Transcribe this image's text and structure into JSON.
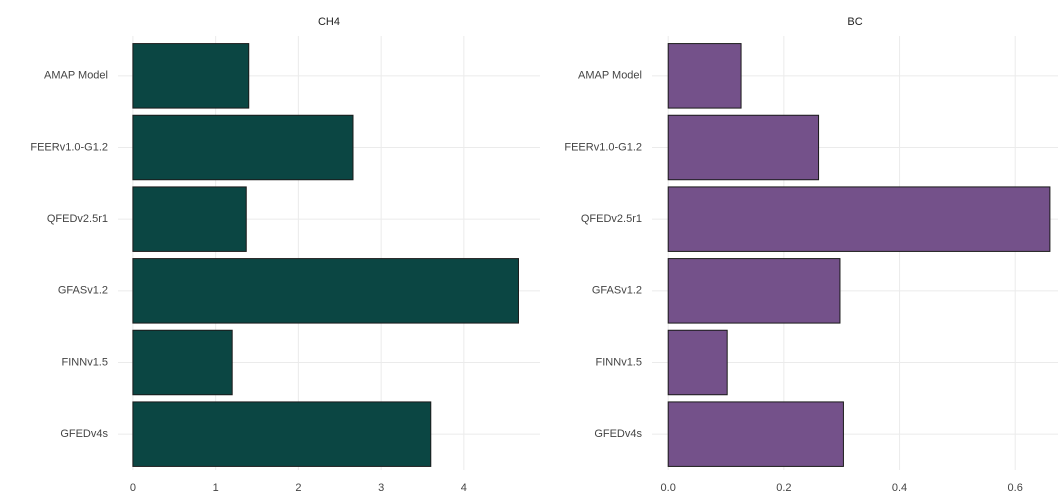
{
  "chart_data": [
    {
      "type": "barh",
      "title": "CH4",
      "categories": [
        "AMAP Model",
        "FEERv1.0-G1.2",
        "QFEDv2.5r1",
        "GFASv1.2",
        "FINNv1.5",
        "GFEDv4s"
      ],
      "values": [
        1.4,
        2.66,
        1.37,
        4.66,
        1.2,
        3.6
      ],
      "color": "#0b4643",
      "xlim": [
        -0.18,
        4.92
      ],
      "xticks": [
        0,
        1,
        2,
        3,
        4
      ],
      "grid": true
    },
    {
      "type": "barh",
      "title": "BC",
      "categories": [
        "AMAP Model",
        "FEERv1.0-G1.2",
        "QFEDv2.5r1",
        "GFASv1.2",
        "FINNv1.5",
        "GFEDv4s"
      ],
      "values": [
        0.126,
        0.26,
        0.66,
        0.297,
        0.102,
        0.303
      ],
      "color": "#74518a",
      "xlim": [
        -0.028,
        0.674
      ],
      "xticks": [
        {
          "value": 0,
          "label": "0.0"
        },
        0.2,
        0.4,
        0.6
      ],
      "grid": true
    }
  ]
}
